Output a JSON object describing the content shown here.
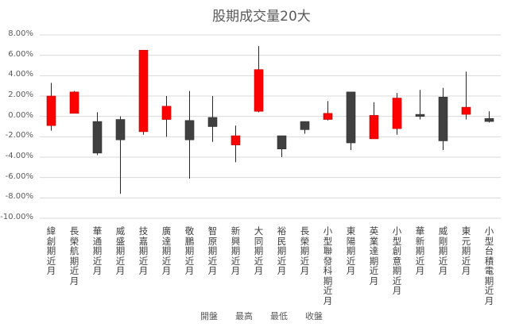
{
  "chart_data": {
    "type": "candlestick",
    "title": "股期成交量20大",
    "xlabel": "",
    "ylabel": "",
    "ylim": [
      -10,
      8
    ],
    "y_ticks": [
      "8.00%",
      "6.00%",
      "4.00%",
      "2.00%",
      "0.00%",
      "-2.00%",
      "-4.00%",
      "-6.00%",
      "-8.00%",
      "-10.00%"
    ],
    "grid": true,
    "legend_position": "bottom",
    "legend": [
      "開盤",
      "最高",
      "最低",
      "收盤"
    ],
    "colors": {
      "up": "#ff0000",
      "down": "#404040",
      "wick": "#262626",
      "grid": "#d9d9d9"
    },
    "categories": [
      "緯創期近月",
      "長榮航期近月",
      "華通期近月",
      "威盛期近月",
      "技嘉期近月",
      "廣達期近月",
      "敬鵬期近月",
      "智原期近月",
      "新興期近月",
      "大同期近月",
      "裕民期近月",
      "長榮期近月",
      "小型聯發科期近月",
      "東陽期近月",
      "英業達期近月",
      "小型創意期近月",
      "華新期近月",
      "威剛期近月",
      "東元期近月",
      "小型台積電期近月"
    ],
    "series": [
      {
        "name": "開盤",
        "values": [
          -0.9,
          0.3,
          -0.5,
          -0.3,
          -1.5,
          -0.3,
          -0.4,
          -0.1,
          -2.8,
          0.5,
          -1.9,
          -0.5,
          -0.3,
          2.4,
          -2.2,
          -1.2,
          0.2,
          1.9,
          0.2,
          -0.2
        ]
      },
      {
        "name": "最高",
        "values": [
          3.3,
          2.5,
          0.4,
          0.0,
          6.5,
          2.0,
          2.5,
          2.0,
          -0.9,
          6.9,
          -1.9,
          -0.5,
          1.5,
          2.4,
          1.4,
          2.3,
          2.6,
          2.8,
          4.4,
          0.5
        ]
      },
      {
        "name": "最低",
        "values": [
          -1.4,
          0.3,
          -3.8,
          -7.6,
          -1.8,
          -2.0,
          -6.1,
          -2.5,
          -4.5,
          0.4,
          -4.0,
          -1.7,
          -0.4,
          -3.3,
          -2.2,
          -1.8,
          -0.3,
          -3.3,
          -0.3,
          -0.6
        ]
      },
      {
        "name": "收盤",
        "values": [
          2.0,
          2.4,
          -3.6,
          -2.3,
          6.5,
          1.0,
          -2.3,
          -1.0,
          -1.9,
          4.6,
          -3.2,
          -1.3,
          0.3,
          -2.6,
          0.1,
          1.8,
          0.0,
          -2.4,
          0.9,
          -0.5
        ]
      }
    ]
  }
}
